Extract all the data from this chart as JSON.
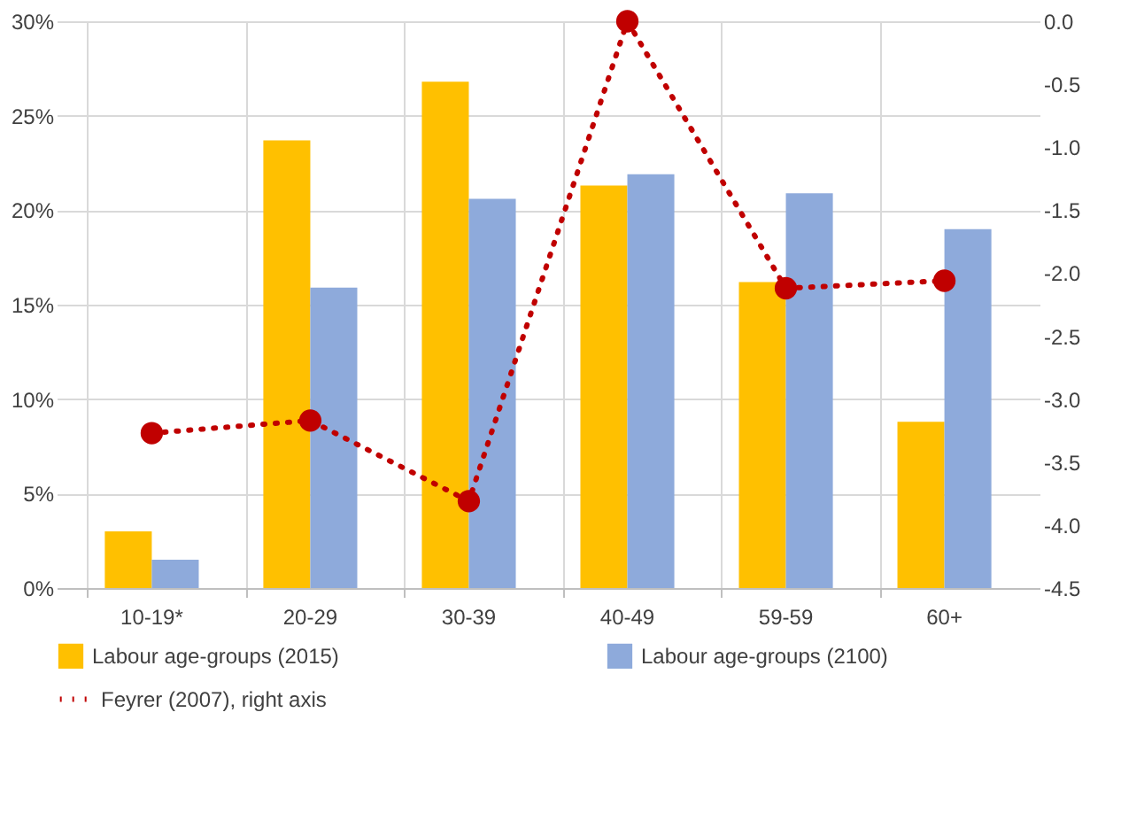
{
  "chart_data": {
    "type": "bar",
    "categories": [
      "10-19*",
      "20-29",
      "30-39",
      "40-49",
      "59-59",
      "60+"
    ],
    "series": [
      {
        "name": "Labour age-groups (2015)",
        "color": "#ffc000",
        "values": [
          3.0,
          23.7,
          26.8,
          21.3,
          16.2,
          8.8
        ]
      },
      {
        "name": "Labour age-groups (2100)",
        "color": "#8eaadb",
        "values": [
          1.5,
          15.9,
          20.6,
          21.9,
          20.9,
          19.0
        ]
      },
      {
        "name": "Feyrer (2007), right axis",
        "type": "line",
        "axis": "y2",
        "color": "#c00000",
        "marker": "circle",
        "line_style": "dotted",
        "values": [
          -3.27,
          -3.17,
          -3.81,
          0.0,
          -2.12,
          -2.06
        ]
      }
    ],
    "ylim": [
      0,
      30
    ],
    "yticks": [
      {
        "value": 0,
        "label": "0%"
      },
      {
        "value": 5,
        "label": "5%"
      },
      {
        "value": 10,
        "label": "10%"
      },
      {
        "value": 15,
        "label": "15%"
      },
      {
        "value": 20,
        "label": "20%"
      },
      {
        "value": 25,
        "label": "25%"
      },
      {
        "value": 30,
        "label": "30%"
      }
    ],
    "y2lim": [
      -4.5,
      0
    ],
    "y2ticks": [
      {
        "value": -4.5,
        "label": "-4.5"
      },
      {
        "value": -4,
        "label": "-4.0"
      },
      {
        "value": -3.5,
        "label": "-3.5"
      },
      {
        "value": -3,
        "label": "-3.0"
      },
      {
        "value": -2.5,
        "label": "-2.5"
      },
      {
        "value": -2,
        "label": "-2.0"
      },
      {
        "value": -1.5,
        "label": "-1.5"
      },
      {
        "value": -1,
        "label": "-1.0"
      },
      {
        "value": -0.5,
        "label": "-0.5"
      },
      {
        "value": 0,
        "label": "0.0"
      }
    ],
    "grid": true,
    "legend": "bottom"
  }
}
